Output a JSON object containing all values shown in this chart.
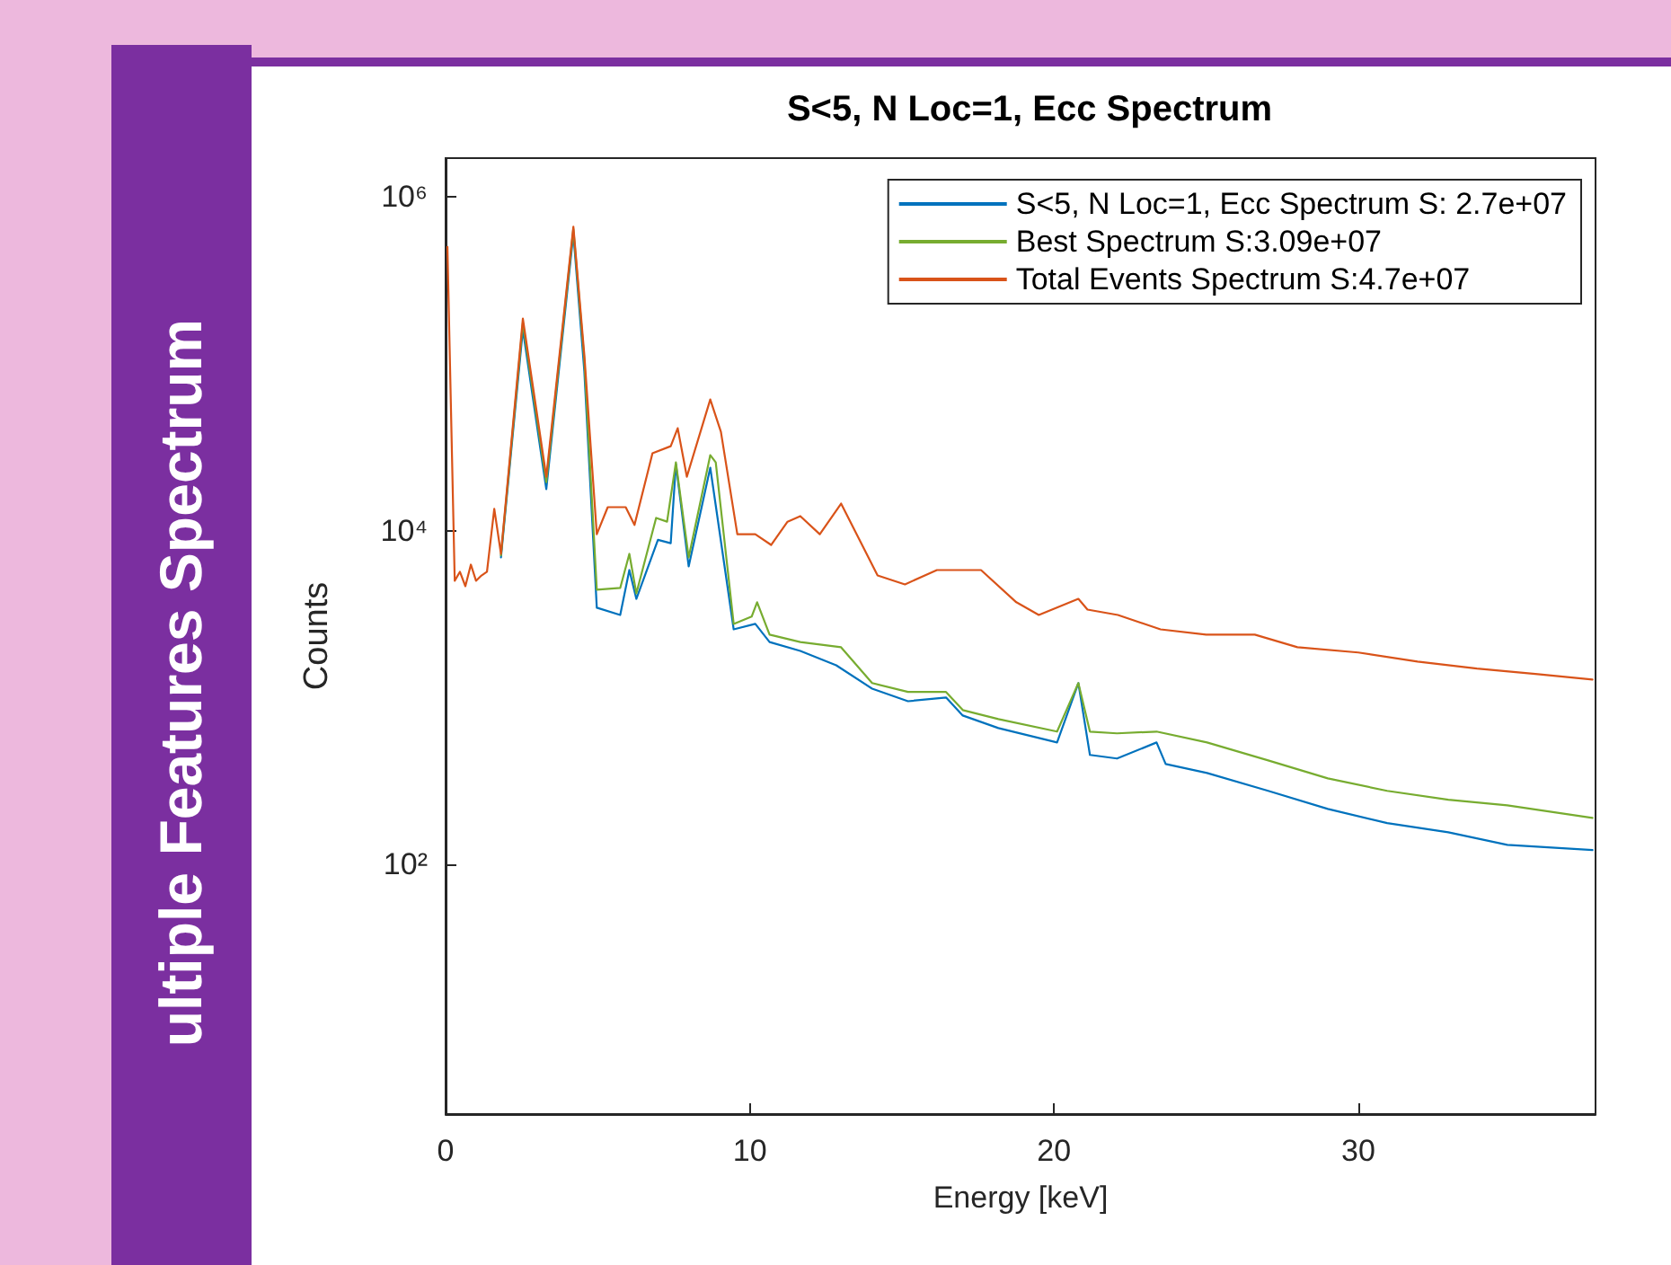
{
  "chart_data": {
    "type": "line",
    "title": "S<5, N Loc=1, Ecc Spectrum",
    "xlabel": "Energy [keV]",
    "ylabel": "Counts",
    "annotations": [
      "ultiple Features Spectrum"
    ],
    "log": "y",
    "grid": false,
    "legend": "top right",
    "marker": "none",
    "line_style": "solid",
    "xlim": [
      0,
      37.8
    ],
    "xticks": [
      0,
      10,
      20,
      30
    ],
    "ylim": [
      3.2,
      1700000
    ],
    "yticks": [
      {
        "value": 100,
        "label": "10²"
      },
      {
        "value": 10000,
        "label": "10⁴"
      },
      {
        "value": 1000000,
        "label": "10⁶"
      }
    ],
    "series": [
      {
        "name": "S<5, N Loc=1, Ecc Spectrum S: 2.7e+07",
        "color": "#0072bd",
        "x": [
          1.82,
          2.54,
          3.31,
          4.2,
          4.56,
          4.97,
          5.74,
          6.04,
          6.27,
          6.98,
          7.4,
          7.57,
          7.99,
          8.7,
          9.47,
          10.18,
          10.65,
          11.66,
          12.84,
          14.02,
          15.2,
          16.45,
          17.0,
          18.17,
          20.1,
          20.8,
          21.18,
          22.07,
          23.37,
          23.67,
          25.03,
          27.04,
          29.0,
          30.95,
          32.96,
          34.9,
          37.7
        ],
        "values": [
          6900,
          160000,
          17700,
          600000,
          90000,
          3450,
          3120,
          5800,
          3900,
          8800,
          8400,
          25000,
          6100,
          23800,
          2560,
          2760,
          2150,
          1900,
          1560,
          1130,
          950,
          1000,
          780,
          656,
          538,
          1220,
          453,
          431,
          538,
          400,
          353,
          276,
          215,
          177,
          156,
          131,
          122
        ]
      },
      {
        "name": "Best Spectrum S:3.09e+07",
        "color": "#77ac30",
        "x": [
          1.82,
          2.54,
          3.31,
          4.2,
          4.56,
          4.97,
          5.74,
          6.04,
          6.27,
          6.92,
          7.28,
          7.57,
          7.99,
          8.7,
          8.88,
          9.47,
          10.06,
          10.24,
          10.65,
          11.66,
          13.0,
          14.02,
          15.2,
          16.45,
          17.0,
          18.17,
          20.1,
          20.8,
          21.18,
          22.07,
          23.37,
          25.03,
          27.04,
          29.0,
          30.95,
          32.96,
          34.9,
          37.7
        ],
        "values": [
          7100,
          175000,
          19500,
          640000,
          105000,
          4420,
          4530,
          7250,
          4200,
          11900,
          11300,
          25600,
          6900,
          28300,
          25600,
          2760,
          3050,
          3720,
          2380,
          2150,
          2000,
          1220,
          1080,
          1080,
          841,
          743,
          625,
          1220,
          625,
          610,
          625,
          538,
          420,
          328,
          276,
          244,
          226,
          190
        ]
      },
      {
        "name": "Total Events Spectrum S:4.7e+07",
        "color": "#d95319",
        "x": [
          0.06,
          0.3,
          0.47,
          0.65,
          0.83,
          1.0,
          1.18,
          1.36,
          1.6,
          1.82,
          2.54,
          3.31,
          4.2,
          4.56,
          4.97,
          5.33,
          5.92,
          6.21,
          6.8,
          7.4,
          7.63,
          7.93,
          8.7,
          9.05,
          9.59,
          10.18,
          10.7,
          11.24,
          11.66,
          12.3,
          13.0,
          14.2,
          15.1,
          16.15,
          17.6,
          18.76,
          19.5,
          20.8,
          21.1,
          22.1,
          23.5,
          25.0,
          26.6,
          28.0,
          30.0,
          31.95,
          33.9,
          35.9,
          37.7
        ],
        "values": [
          500000,
          5000,
          5660,
          4640,
          6250,
          5000,
          5380,
          5660,
          13500,
          7250,
          186000,
          21000,
          660000,
          113000,
          9500,
          13800,
          13800,
          10800,
          29000,
          32000,
          41000,
          21000,
          61000,
          39000,
          9500,
          9500,
          8200,
          11300,
          12200,
          9500,
          14500,
          5380,
          4760,
          5800,
          5800,
          3720,
          3120,
          3900,
          3360,
          3120,
          2560,
          2380,
          2380,
          2000,
          1860,
          1640,
          1490,
          1380,
          1280
        ]
      }
    ]
  }
}
